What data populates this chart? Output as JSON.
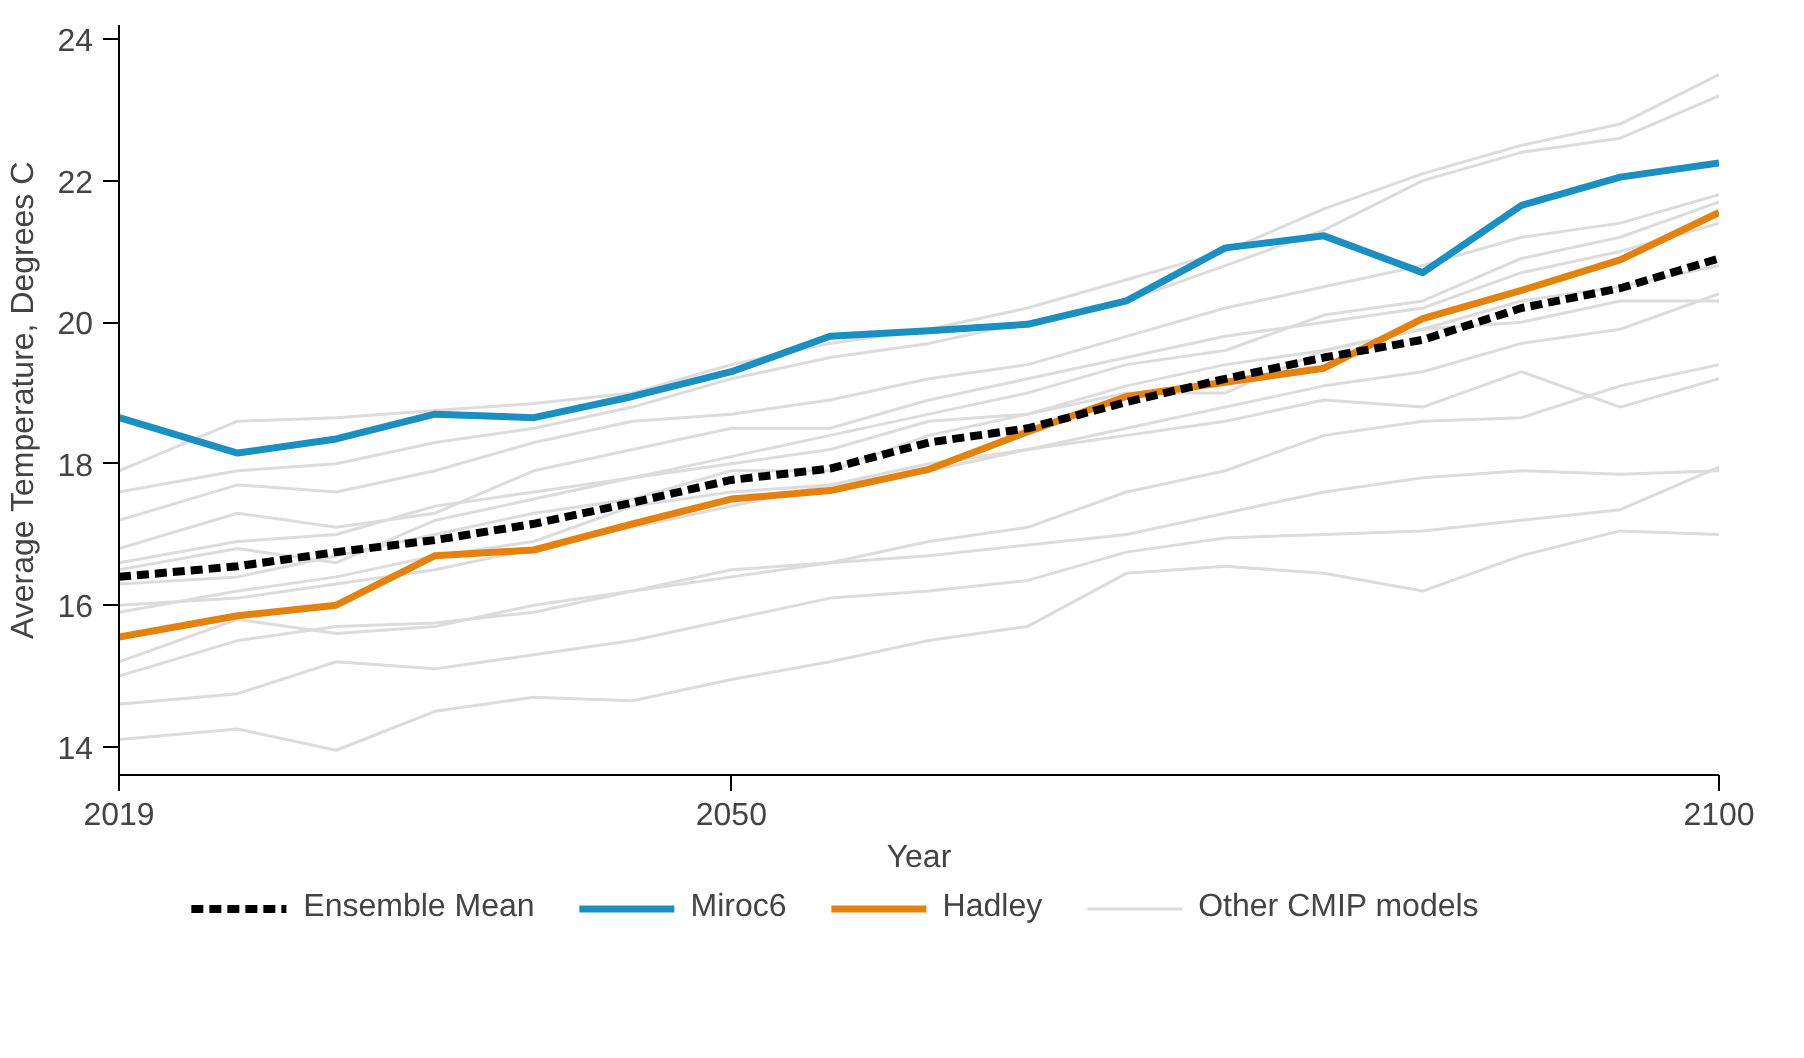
{
  "chart_data": {
    "type": "line",
    "xlabel": "Year",
    "ylabel": "Average Temperature, Degrees C",
    "x": [
      2019,
      2025,
      2030,
      2035,
      2040,
      2045,
      2050,
      2055,
      2060,
      2065,
      2070,
      2075,
      2080,
      2085,
      2090,
      2095,
      2100
    ],
    "xlim": [
      2019,
      2100
    ],
    "xticks": [
      2019,
      2050,
      2100
    ],
    "ylim": [
      13.6,
      24.2
    ],
    "yticks": [
      14,
      16,
      18,
      20,
      22,
      24
    ],
    "grid": false,
    "legend": "bottom",
    "marker": "none",
    "series": [
      {
        "name": "Ensemble Mean",
        "color": "#000000",
        "line_style": "dashed",
        "values": [
          16.4,
          16.55,
          16.75,
          16.92,
          17.15,
          17.45,
          17.77,
          17.93,
          18.3,
          18.5,
          18.87,
          19.2,
          19.5,
          19.75,
          20.2,
          20.48,
          20.9
        ]
      },
      {
        "name": "Miroc6",
        "color": "#1a8fc1",
        "values": [
          18.65,
          18.15,
          18.35,
          18.7,
          18.65,
          18.95,
          19.3,
          19.8,
          19.88,
          19.97,
          20.3,
          21.05,
          21.22,
          20.7,
          21.65,
          22.05,
          22.25
        ]
      },
      {
        "name": "Hadley",
        "color": "#e4820d",
        "values": [
          15.55,
          15.85,
          16.0,
          16.7,
          16.78,
          17.15,
          17.5,
          17.62,
          17.92,
          18.45,
          18.95,
          19.15,
          19.35,
          20.05,
          20.45,
          20.88,
          21.55
        ]
      },
      {
        "name": "Other CMIP models",
        "color": "#dcdcdc",
        "values": [
          17.9,
          18.6,
          18.65,
          18.75,
          18.85,
          19.0,
          19.4,
          19.7,
          19.9,
          20.2,
          20.6,
          21.0,
          21.6,
          22.1,
          22.5,
          22.8,
          23.5
        ]
      },
      {
        "color": "#dcdcdc",
        "values": [
          17.6,
          17.9,
          18.0,
          18.3,
          18.5,
          18.8,
          19.2,
          19.5,
          19.7,
          20.0,
          20.3,
          20.8,
          21.3,
          22.0,
          22.4,
          22.6,
          23.2
        ]
      },
      {
        "color": "#dcdcdc",
        "values": [
          14.1,
          14.25,
          13.95,
          14.5,
          14.7,
          14.65,
          14.95,
          15.2,
          15.5,
          15.7,
          16.45,
          16.55,
          16.45,
          16.2,
          16.7,
          17.05,
          17.0
        ]
      },
      {
        "color": "#dcdcdc",
        "values": [
          14.6,
          14.75,
          15.2,
          15.1,
          15.3,
          15.5,
          15.8,
          16.1,
          16.2,
          16.35,
          16.75,
          16.95,
          17.0,
          17.05,
          17.2,
          17.35,
          17.95
        ]
      },
      {
        "color": "#dcdcdc",
        "values": [
          15.0,
          15.5,
          15.7,
          15.75,
          15.9,
          16.2,
          16.4,
          16.6,
          16.7,
          16.85,
          17.0,
          17.3,
          17.6,
          17.8,
          17.9,
          17.85,
          17.9
        ]
      },
      {
        "color": "#dcdcdc",
        "values": [
          15.2,
          15.8,
          15.6,
          15.7,
          16.0,
          16.2,
          16.5,
          16.6,
          16.9,
          17.1,
          17.6,
          17.9,
          18.4,
          18.6,
          18.65,
          19.1,
          19.4
        ]
      },
      {
        "color": "#dcdcdc",
        "values": [
          16.0,
          16.1,
          16.3,
          16.5,
          16.8,
          17.1,
          17.4,
          17.7,
          17.9,
          18.2,
          18.4,
          18.6,
          18.9,
          18.8,
          19.3,
          18.8,
          19.2
        ]
      },
      {
        "color": "#dcdcdc",
        "values": [
          16.6,
          16.9,
          17.0,
          17.4,
          17.6,
          17.8,
          18.0,
          18.2,
          18.6,
          18.7,
          19.1,
          19.4,
          19.6,
          19.9,
          20.3,
          20.5,
          20.8
        ]
      },
      {
        "color": "#dcdcdc",
        "values": [
          16.8,
          17.3,
          17.1,
          17.3,
          17.9,
          18.2,
          18.5,
          18.5,
          18.9,
          19.2,
          19.5,
          19.8,
          20.0,
          20.2,
          20.7,
          21.0,
          21.4
        ]
      },
      {
        "color": "#dcdcdc",
        "values": [
          17.2,
          17.7,
          17.6,
          17.9,
          18.3,
          18.6,
          18.7,
          18.9,
          19.2,
          19.4,
          19.8,
          20.2,
          20.5,
          20.8,
          21.2,
          21.4,
          21.8
        ]
      },
      {
        "color": "#dcdcdc",
        "values": [
          15.9,
          16.2,
          16.4,
          16.7,
          16.9,
          17.4,
          17.6,
          17.7,
          18.0,
          18.2,
          18.5,
          18.8,
          19.1,
          19.3,
          19.7,
          19.9,
          20.4
        ]
      },
      {
        "color": "#dcdcdc",
        "values": [
          16.3,
          16.4,
          16.7,
          17.0,
          17.3,
          17.5,
          17.9,
          17.9,
          18.4,
          18.7,
          19.0,
          19.0,
          19.6,
          19.9,
          20.0,
          20.3,
          20.3
        ]
      },
      {
        "color": "#dcdcdc",
        "values": [
          16.5,
          16.8,
          16.6,
          17.2,
          17.5,
          17.8,
          18.1,
          18.4,
          18.7,
          19.0,
          19.4,
          19.6,
          20.1,
          20.3,
          20.9,
          21.2,
          21.7
        ]
      }
    ]
  }
}
